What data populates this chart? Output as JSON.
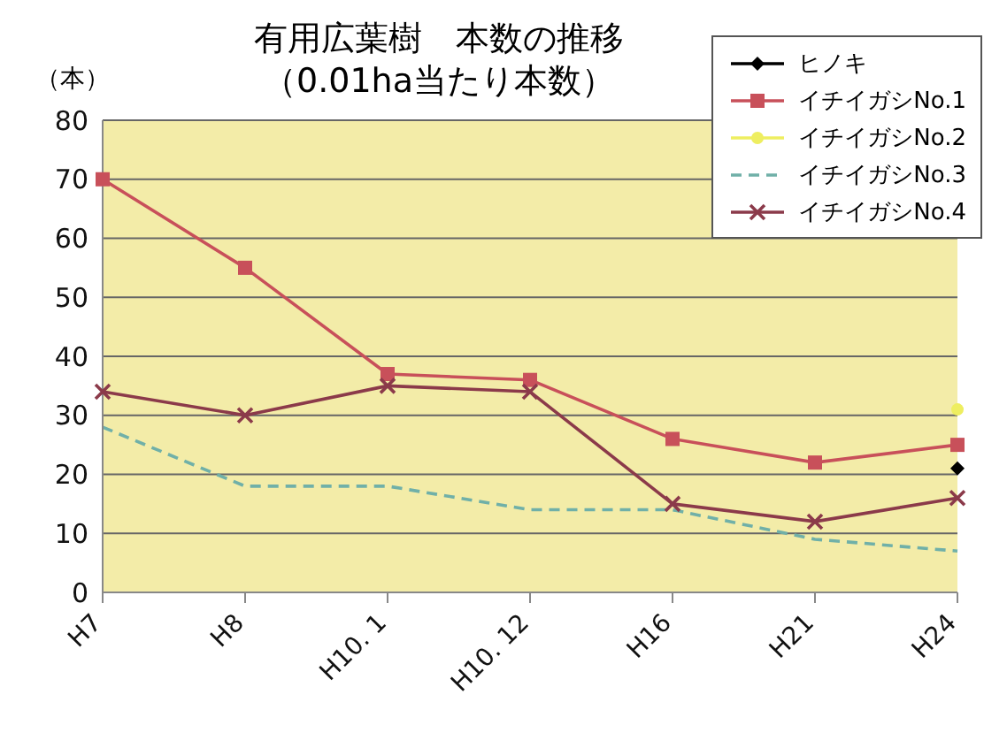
{
  "chart_data": {
    "type": "line",
    "title": "有用広葉樹　本数の推移",
    "subtitle": "（0.01ha当たり本数）",
    "ylabel": "（本）",
    "categories": [
      "H7",
      "H8",
      "H10. 1",
      "H10. 12",
      "H16",
      "H21",
      "H24"
    ],
    "series": [
      {
        "name": "ヒノキ",
        "color": "#000000",
        "marker": "diamond",
        "values": [
          null,
          null,
          null,
          null,
          null,
          null,
          21
        ]
      },
      {
        "name": "イチイガシNo.1",
        "color": "#c8505a",
        "marker": "square",
        "values": [
          70,
          55,
          37,
          36,
          26,
          22,
          25
        ]
      },
      {
        "name": "イチイガシNo.2",
        "color": "#eeee60",
        "marker": "circle",
        "values": [
          null,
          null,
          null,
          null,
          null,
          null,
          31
        ]
      },
      {
        "name": "イチイガシNo.3",
        "color": "#70b0a8",
        "marker": "none",
        "line_style": "dashed",
        "values": [
          28,
          18,
          18,
          14,
          14,
          9,
          7
        ]
      },
      {
        "name": "イチイガシNo.4",
        "color": "#8b3a4a",
        "marker": "cross",
        "values": [
          34,
          30,
          35,
          34,
          15,
          12,
          16
        ]
      }
    ],
    "ylim": [
      0,
      80
    ],
    "yticks": [
      0,
      10,
      20,
      30,
      40,
      50,
      60,
      70,
      80
    ],
    "grid": "y",
    "legend": "top right"
  }
}
